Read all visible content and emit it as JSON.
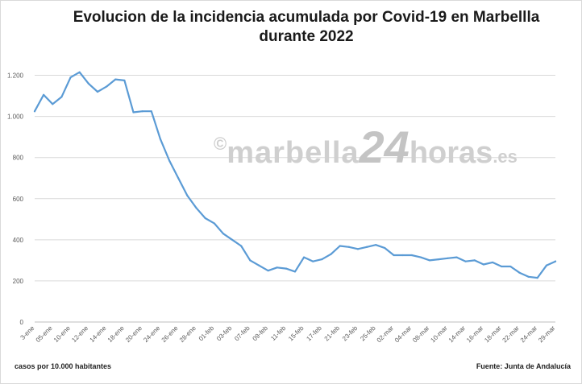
{
  "title_line1": "Evolucion de la incidencia acumulada por Covid-19 en Marbellla",
  "title_line2": "durante 2022",
  "watermark": {
    "c": "©",
    "main": "marbella",
    "num": "24",
    "horas": "horas",
    "es": ".es"
  },
  "footer": {
    "left": "casos por 10.000 habitantes",
    "right": "Fuente: Junta de Andalucía"
  },
  "colors": {
    "line": "#5b9bd5",
    "grid": "#d9d9d9",
    "axis": "#bfbfbf",
    "text": "#595959"
  },
  "chart_data": {
    "type": "line",
    "title": "Evolucion de la incidencia acumulada por Covid-19 en Marbellla durante 2022",
    "xlabel": "",
    "ylabel": "",
    "ylim": [
      0,
      1300
    ],
    "yticks": [
      0,
      200,
      400,
      600,
      800,
      1000,
      1200
    ],
    "ytick_labels": [
      "0",
      "200",
      "400",
      "600",
      "800",
      "1.000",
      "1.200"
    ],
    "grid": true,
    "x": [
      "3-ene",
      "04-ene",
      "05-ene",
      "07-ene",
      "10-ene",
      "11-ene",
      "12-ene",
      "13-ene",
      "14-ene",
      "17-ene",
      "18-ene",
      "19-ene",
      "20-ene",
      "21-ene",
      "24-ene",
      "25-ene",
      "26-ene",
      "27-ene",
      "28-ene",
      "31-ene",
      "01-feb",
      "02-feb",
      "03-feb",
      "04-feb",
      "07-feb",
      "08-feb",
      "09-feb",
      "10-feb",
      "11-feb",
      "14-feb",
      "15-feb",
      "16-feb",
      "17-feb",
      "18-feb",
      "21-feb",
      "22-feb",
      "23-feb",
      "24-feb",
      "25-feb",
      "28-feb",
      "02-mar",
      "03-mar",
      "04-mar",
      "07-mar",
      "08-mar",
      "09-mar",
      "10-mar",
      "11-mar",
      "14-mar",
      "15-mar",
      "16-mar",
      "17-mar",
      "18-mar",
      "21-mar",
      "22-mar",
      "23-mar",
      "24-mar",
      "25-mar",
      "29-mar"
    ],
    "xtick_labels": [
      "3-ene",
      "05-ene",
      "10-ene",
      "12-ene",
      "14-ene",
      "18-ene",
      "20-ene",
      "24-ene",
      "26-ene",
      "28-ene",
      "01-feb",
      "03-feb",
      "07-feb",
      "09-feb",
      "11-feb",
      "15-feb",
      "17-feb",
      "21-feb",
      "23-feb",
      "25-feb",
      "02-mar",
      "04-mar",
      "08-mar",
      "10-mar",
      "14-mar",
      "16-mar",
      "18-mar",
      "22-mar",
      "24-mar",
      "29-mar"
    ],
    "values": [
      1025,
      1105,
      1060,
      1095,
      1190,
      1215,
      1160,
      1120,
      1145,
      1180,
      1175,
      1020,
      1025,
      1025,
      890,
      785,
      700,
      615,
      555,
      505,
      480,
      430,
      400,
      370,
      300,
      275,
      250,
      265,
      260,
      245,
      315,
      295,
      305,
      330,
      370,
      365,
      355,
      365,
      375,
      360,
      325,
      325,
      325,
      315,
      300,
      305,
      310,
      315,
      295,
      300,
      280,
      290,
      270,
      270,
      240,
      220,
      215,
      275,
      295
    ]
  }
}
